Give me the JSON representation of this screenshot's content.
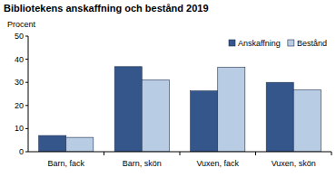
{
  "chart_data": {
    "type": "bar",
    "title": "Bibliotekens anskaffning och bestånd 2019",
    "y_label": "Procent",
    "categories": [
      "Barn, fack",
      "Barn, skön",
      "Vuxen, fack",
      "Vuxen, skön"
    ],
    "series": [
      {
        "name": "Anskaffning",
        "color": "#34568b",
        "values": [
          7,
          36.8,
          26.3,
          30
        ]
      },
      {
        "name": "Bestånd",
        "color": "#b8cce4",
        "values": [
          6.2,
          31,
          36.5,
          26.7
        ]
      }
    ],
    "ylim": [
      0,
      50
    ],
    "yticks": [
      0,
      10,
      20,
      30,
      40,
      50
    ],
    "grid": false,
    "legend": "upper right"
  }
}
